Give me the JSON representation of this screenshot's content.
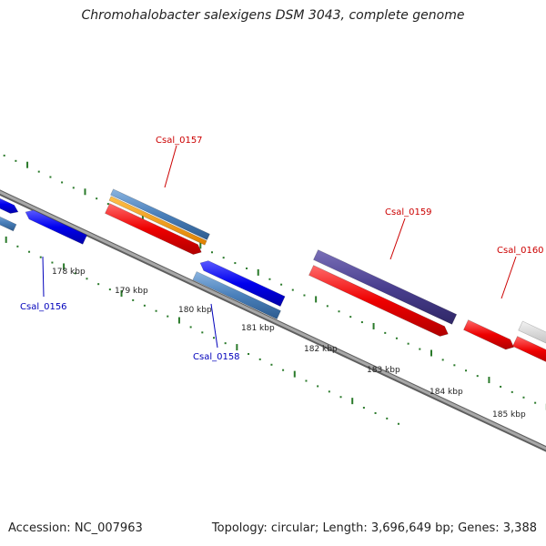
{
  "title": "Chromohalobacter salexigens DSM 3043, complete genome",
  "footer": {
    "accession": "Accession: NC_007963",
    "summary": "Topology: circular; Length: 3,696,649 bp; Genes: 3,388"
  },
  "colors": {
    "backbone": "#8a8a8a",
    "ticks": "#2a7a2a",
    "forward_label": "#cc0000",
    "reverse_label": "#0000bb"
  },
  "ruler": {
    "unit": "kbp",
    "labels": [
      "178 kbp",
      "179 kbp",
      "180 kbp",
      "181 kbp",
      "182 kbp",
      "183 kbp",
      "184 kbp",
      "185 kbp"
    ]
  },
  "gene_labels": [
    {
      "name": "Csal_0156",
      "strand": "reverse"
    },
    {
      "name": "Csal_0157",
      "strand": "forward"
    },
    {
      "name": "Csal_0158",
      "strand": "reverse"
    },
    {
      "name": "Csal_0159",
      "strand": "forward"
    },
    {
      "name": "Csal_0160",
      "strand": "forward"
    }
  ]
}
